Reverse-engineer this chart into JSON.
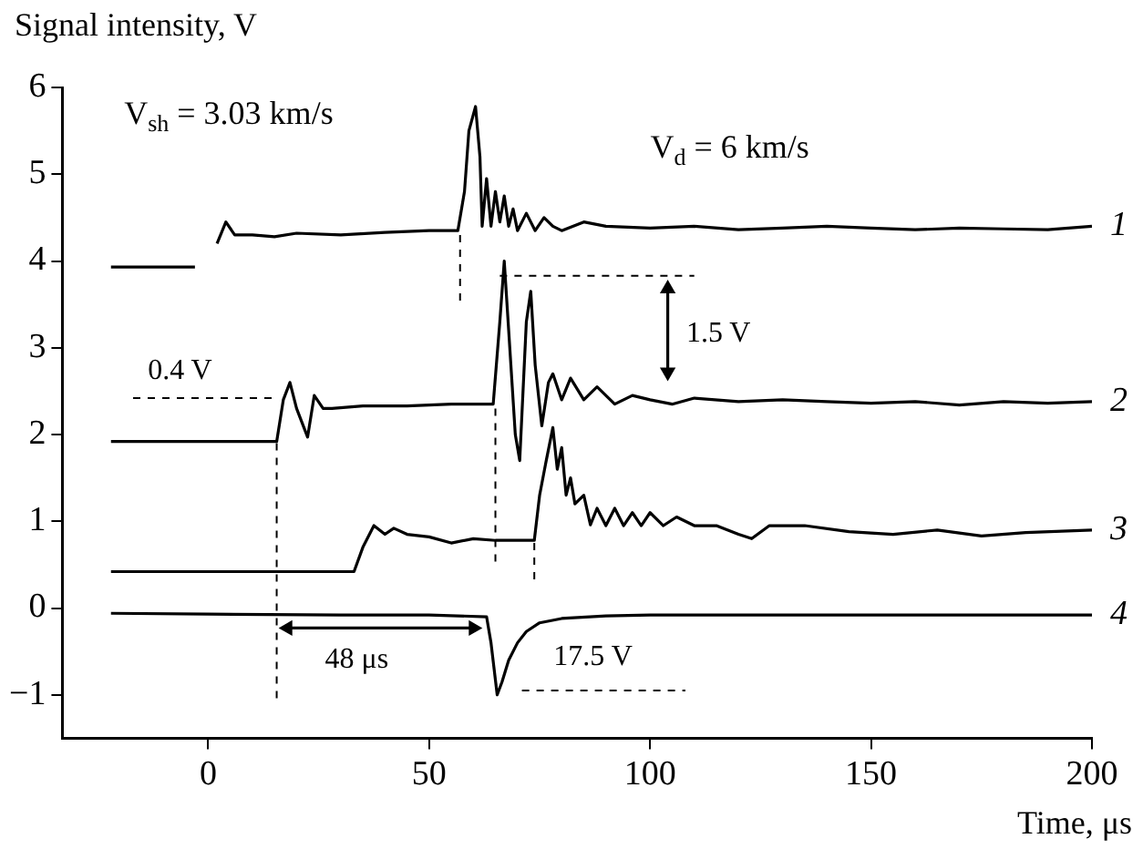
{
  "chart_data": {
    "type": "line",
    "xlabel": "Time, μs",
    "ylabel": "Signal intensity, V",
    "xlim": [
      -33,
      200
    ],
    "ylim": [
      -1.5,
      6
    ],
    "xticks": [
      0,
      50,
      100,
      150,
      200
    ],
    "yticks": [
      -1,
      0,
      1,
      2,
      3,
      4,
      5,
      6
    ],
    "grid": false,
    "legend": false,
    "annotations": [
      "V$_{sh}$ = 3.03 km/s",
      "V$_{d}$ = 6 km/s",
      "0.4 V",
      "1.5 V",
      "48 μs",
      "17.5 V"
    ],
    "series": [
      {
        "name": "1",
        "color": "#000000",
        "line_style": "solid",
        "marker": "none",
        "x": [
          -22,
          -3,
          -0.5,
          2,
          4,
          6,
          10,
          15,
          20,
          30,
          40,
          50,
          56.5,
          58,
          59,
          60.5,
          61.5,
          62,
          63,
          64,
          65,
          66,
          67,
          68,
          69,
          70,
          72,
          74,
          76,
          78,
          80,
          85,
          90,
          100,
          110,
          120,
          130,
          140,
          150,
          160,
          170,
          180,
          190,
          200
        ],
        "values": [
          3.93,
          3.93,
          null,
          4.2,
          4.45,
          4.3,
          4.3,
          4.28,
          4.32,
          4.3,
          4.33,
          4.35,
          4.35,
          4.8,
          5.5,
          5.78,
          5.2,
          4.4,
          4.95,
          4.4,
          4.8,
          4.45,
          4.75,
          4.4,
          4.6,
          4.35,
          4.55,
          4.35,
          4.5,
          4.4,
          4.35,
          4.45,
          4.4,
          4.38,
          4.4,
          4.36,
          4.38,
          4.4,
          4.38,
          4.36,
          4.38,
          4.37,
          4.36,
          4.4
        ]
      },
      {
        "name": "2",
        "color": "#000000",
        "line_style": "solid",
        "marker": "none",
        "x": [
          -22,
          0,
          15.5,
          17,
          18.5,
          20,
          22.5,
          24,
          26,
          28,
          35,
          45,
          55,
          64.5,
          66,
          67,
          68,
          69.5,
          70.5,
          72,
          73,
          74,
          75.5,
          77,
          78,
          80,
          82,
          85,
          88,
          92,
          96,
          100,
          105,
          110,
          120,
          130,
          140,
          150,
          160,
          170,
          180,
          190,
          200
        ],
        "values": [
          1.92,
          1.92,
          1.92,
          2.4,
          2.6,
          2.3,
          1.97,
          2.45,
          2.3,
          2.3,
          2.33,
          2.33,
          2.35,
          2.35,
          3.3,
          4.0,
          3.2,
          2.0,
          1.7,
          3.3,
          3.65,
          2.8,
          2.1,
          2.6,
          2.7,
          2.4,
          2.65,
          2.4,
          2.55,
          2.35,
          2.45,
          2.4,
          2.35,
          2.42,
          2.38,
          2.4,
          2.38,
          2.36,
          2.38,
          2.34,
          2.38,
          2.36,
          2.38
        ]
      },
      {
        "name": "3",
        "color": "#000000",
        "line_style": "solid",
        "marker": "none",
        "x": [
          -22,
          0,
          20,
          33,
          35,
          37.5,
          40,
          42,
          45,
          50,
          55,
          60,
          65,
          70,
          73.8,
          75,
          76.5,
          78,
          79,
          80,
          81,
          82,
          83,
          85,
          86.5,
          88,
          90,
          92,
          94,
          96,
          98,
          100,
          103,
          106,
          110,
          115,
          120,
          123,
          127,
          135,
          145,
          155,
          165,
          175,
          185,
          200
        ],
        "values": [
          0.42,
          0.42,
          0.42,
          0.42,
          0.7,
          0.95,
          0.85,
          0.92,
          0.85,
          0.82,
          0.75,
          0.8,
          0.78,
          0.78,
          0.78,
          1.3,
          1.7,
          2.08,
          1.6,
          1.85,
          1.3,
          1.5,
          1.2,
          1.3,
          0.96,
          1.15,
          0.95,
          1.15,
          0.95,
          1.1,
          0.95,
          1.1,
          0.95,
          1.05,
          0.95,
          0.95,
          0.85,
          0.8,
          0.95,
          0.95,
          0.88,
          0.85,
          0.9,
          0.83,
          0.87,
          0.9
        ]
      },
      {
        "name": "4",
        "color": "#000000",
        "line_style": "solid",
        "marker": "none",
        "x": [
          -22,
          0,
          30,
          50,
          63,
          64,
          65.4,
          66.5,
          68,
          70,
          72,
          75,
          80,
          90,
          100,
          150,
          200
        ],
        "values": [
          -0.06,
          -0.07,
          -0.08,
          -0.08,
          -0.1,
          -0.4,
          -1.0,
          -0.85,
          -0.6,
          -0.4,
          -0.27,
          -0.17,
          -0.12,
          -0.09,
          -0.08,
          -0.08,
          -0.08
        ]
      },
      {
        "color": "#000000",
        "line_style": "dashed",
        "marker": "none",
        "x": [
          57,
          57
        ],
        "values": [
          4.3,
          3.5
        ]
      },
      {
        "color": "#000000",
        "line_style": "dashed",
        "marker": "none",
        "x": [
          -17,
          16
        ],
        "values": [
          2.42,
          2.42
        ]
      },
      {
        "color": "#000000",
        "line_style": "dashed",
        "marker": "none",
        "x": [
          15.5,
          15.5
        ],
        "values": [
          1.9,
          -1.1
        ]
      },
      {
        "color": "#000000",
        "line_style": "dashed",
        "marker": "none",
        "x": [
          66,
          110
        ],
        "values": [
          3.83,
          3.83
        ]
      },
      {
        "color": "#000000",
        "line_style": "dashed",
        "marker": "none",
        "x": [
          65,
          65
        ],
        "values": [
          2.3,
          0.47
        ]
      },
      {
        "color": "#000000",
        "line_style": "dashed",
        "marker": "none",
        "x": [
          73.8,
          73.8
        ],
        "values": [
          0.75,
          0.32
        ]
      },
      {
        "color": "#000000",
        "line_style": "dashed",
        "marker": "none",
        "x": [
          71,
          108
        ],
        "values": [
          -0.95,
          -0.95
        ]
      },
      {
        "color": "#000000",
        "line_style": "solid",
        "marker": "triangle",
        "x": [
          18,
          60
        ],
        "values": [
          -0.23,
          -0.23
        ]
      },
      {
        "color": "#000000",
        "line_style": "solid",
        "marker": "triangle",
        "x": [
          104,
          104
        ],
        "values": [
          3.68,
          2.72
        ]
      }
    ]
  }
}
